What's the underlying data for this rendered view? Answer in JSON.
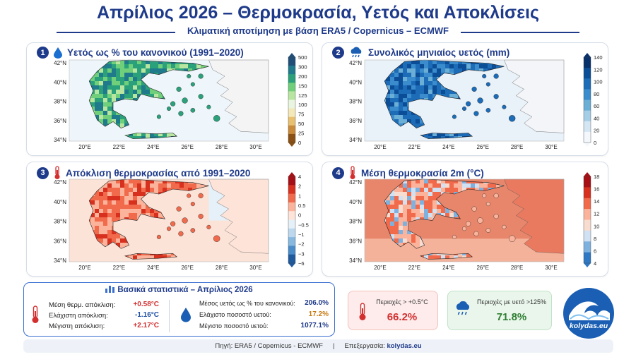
{
  "header": {
    "title": "Απρίλιος 2026 – Θερμοκρασία, Υετός και Αποκλίσεις",
    "subtitle": "Κλιματική αποτίμηση με βάση ERA5 / Copernicus – ECMWF"
  },
  "axes": {
    "lat_labels": [
      "42°N",
      "40°N",
      "38°N",
      "36°N",
      "34°N"
    ],
    "lon_labels": [
      "20°E",
      "22°E",
      "24°E",
      "26°E",
      "28°E",
      "30°E"
    ]
  },
  "panels": [
    {
      "number": "1",
      "title": "Υετός ως % του κανονικού (1991–2020)",
      "icon": "droplet-icon",
      "colorbar_ticks": [
        "500",
        "300",
        "200",
        "150",
        "125",
        "100",
        "75",
        "50",
        "25",
        "0"
      ],
      "colorbar_unit": "%",
      "colors": [
        "#1f4e79",
        "#1f7a8c",
        "#2aa17a",
        "#6fcf7a",
        "#b8e6a0",
        "#eaf5e0",
        "#f4e8b8",
        "#e8c070",
        "#c98b3a",
        "#8a5014"
      ]
    },
    {
      "number": "2",
      "title": "Συνολικός μηνιαίος υετός (mm)",
      "icon": "rain-cloud-icon",
      "colorbar_ticks": [
        "140",
        "120",
        "100",
        "80",
        "60",
        "40",
        "20",
        "0"
      ],
      "colorbar_unit": "mm",
      "colors": [
        "#08306b",
        "#0b4d96",
        "#1c6cb8",
        "#3a8ccc",
        "#6baed6",
        "#a6cde6",
        "#d4e6f3",
        "#f4f8fc"
      ]
    },
    {
      "number": "3",
      "title": "Απόκλιση θερμοκρασίας από 1991–2020",
      "icon": "thermometer-icon",
      "colorbar_ticks": [
        "4",
        "2",
        "1",
        "0.5",
        "0",
        "−0.5",
        "−1",
        "−2",
        "−3",
        "−6"
      ],
      "colorbar_unit": "°C",
      "colors": [
        "#a50f15",
        "#d7301f",
        "#f16a4b",
        "#fbb49b",
        "#fde3d8",
        "#e6f0f8",
        "#bcd7ee",
        "#86b8e0",
        "#4a8cc9",
        "#1f5a9e"
      ]
    },
    {
      "number": "4",
      "title": "Μέση θερμοκρασία 2m (°C)",
      "icon": "thermometer-icon",
      "colorbar_ticks": [
        "18",
        "16",
        "14",
        "12",
        "10",
        "8",
        "6",
        "4"
      ],
      "colorbar_unit": "°C",
      "colors": [
        "#a50f15",
        "#d7301f",
        "#f16a4b",
        "#fbb49b",
        "#f7dccf",
        "#cfe1f2",
        "#7fb1df",
        "#2f78c4"
      ]
    }
  ],
  "stats": {
    "title": "Βασικά στατιστικά – Απρίλιος 2026",
    "temp": [
      {
        "label": "Μέση θερμ. απόκλιση:",
        "value": "+0.58°C",
        "color": "#d32f2f"
      },
      {
        "label": "Ελάχιστη απόκλιση:",
        "value": "-1.16°C",
        "color": "#1e4fa3"
      },
      {
        "label": "Μέγιστη απόκλιση:",
        "value": "+2.17°C",
        "color": "#d32f2f"
      }
    ],
    "precip": [
      {
        "label": "Μέσος υετός ως % του κανονικού:",
        "value": "206.0%",
        "color": "#1e3a8a"
      },
      {
        "label": "Ελάχιστο ποσοστό υετού:",
        "value": "17.2%",
        "color": "#c77a12"
      },
      {
        "label": "Μέγιστο ποσοστό υετού:",
        "value": "1077.1%",
        "color": "#1e3a8a"
      }
    ]
  },
  "kpis": [
    {
      "label": "Περιοχές > +0.5°C",
      "value": "66.2%",
      "color": "#d32f2f",
      "bg": "#fdeceb",
      "border": "#f3c3bf",
      "icon": "thermometer-icon"
    },
    {
      "label": "Περιοχές με υετό >125%",
      "value": "71.8%",
      "color": "#2e7d32",
      "bg": "#eaf6ec",
      "border": "#bfe3c5",
      "icon": "rain-cloud-icon"
    }
  ],
  "footer": {
    "source": "Πηγή: ERA5 / Copernicus - ECMWF",
    "separator": "|",
    "processing_label": "Επεξεργασία:",
    "processing_value": "kolydas.eu"
  },
  "logo": {
    "text": "kolydas.eu"
  }
}
